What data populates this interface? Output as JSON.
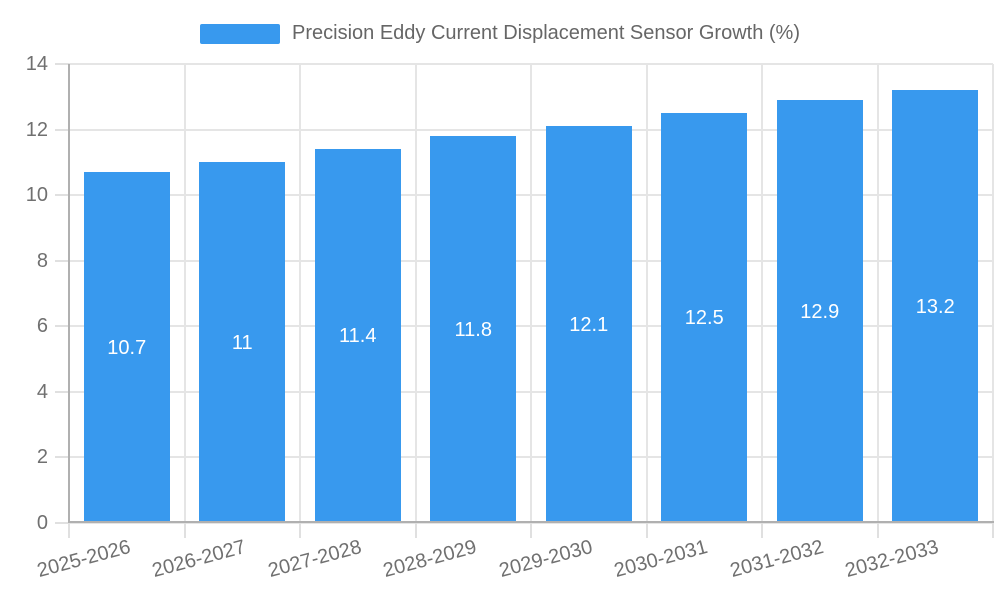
{
  "chart_data": {
    "type": "bar",
    "legend": {
      "label": "Precision Eddy Current Displacement Sensor Growth (%)",
      "position": "top"
    },
    "categories": [
      "2025-2026",
      "2026-2027",
      "2027-2028",
      "2028-2029",
      "2029-2030",
      "2030-2031",
      "2031-2032",
      "2032-2033"
    ],
    "values": [
      10.7,
      11,
      11.4,
      11.8,
      12.1,
      12.5,
      12.9,
      13.2
    ],
    "value_labels": [
      "10.7",
      "11",
      "11.4",
      "11.8",
      "12.1",
      "12.5",
      "12.9",
      "13.2"
    ],
    "xlabel": "",
    "ylabel": "",
    "ylim": [
      0,
      14
    ],
    "yticks": [
      0,
      2,
      4,
      6,
      8,
      10,
      12,
      14
    ],
    "grid": true,
    "value_label_position": "center-inside",
    "x_label_rotation_deg": -15,
    "colors": {
      "bar": "#3899ee",
      "bar_label": "#ffffff",
      "legend_text": "#666666",
      "tick_text": "#707070",
      "grid": "#e5e5e5",
      "tick_mark": "#e0e0e0",
      "axis": "#b0b0b0"
    }
  }
}
